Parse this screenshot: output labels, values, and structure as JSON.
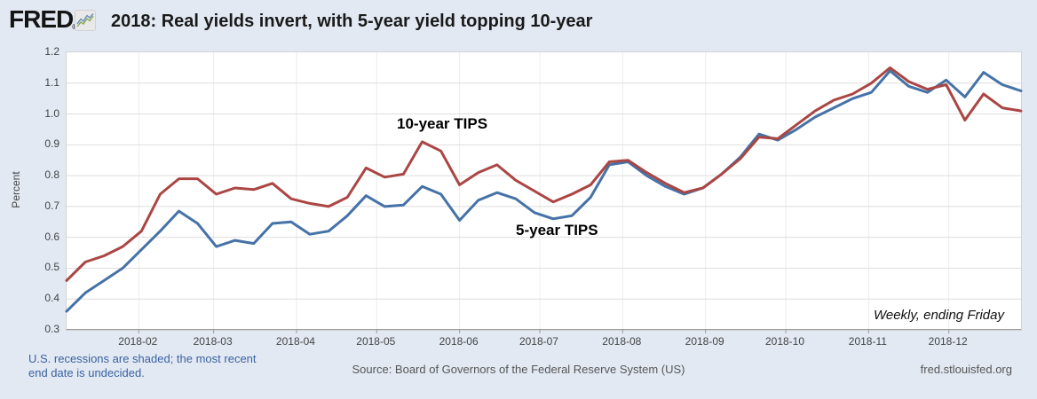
{
  "header": {
    "logo": "FRED",
    "registered": "®",
    "title": "2018: Real yields invert, with 5-year yield topping 10-year"
  },
  "chart_data": {
    "type": "line",
    "title": "2018: Real yields invert, with 5-year yield topping 10-year",
    "ylabel": "Percent",
    "ylim": [
      0.3,
      1.2
    ],
    "yticklabels": [
      "1.2",
      "1.1",
      "1.0",
      "0.9",
      "0.8",
      "0.7",
      "0.6",
      "0.5",
      "0.4",
      "0.3"
    ],
    "xticklabels": [
      "2018-02",
      "2018-03",
      "2018-04",
      "2018-05",
      "2018-06",
      "2018-07",
      "2018-08",
      "2018-09",
      "2018-10",
      "2018-11",
      "2018-12"
    ],
    "grid": true,
    "frequency_note": "Weekly, ending Friday",
    "annotations": [
      {
        "text": "10-year TIPS"
      },
      {
        "text": "5-year TIPS"
      }
    ],
    "x_dates": [
      "2018-01-05",
      "2018-01-12",
      "2018-01-19",
      "2018-01-26",
      "2018-02-02",
      "2018-02-09",
      "2018-02-16",
      "2018-02-23",
      "2018-03-02",
      "2018-03-09",
      "2018-03-16",
      "2018-03-23",
      "2018-03-30",
      "2018-04-06",
      "2018-04-13",
      "2018-04-20",
      "2018-04-27",
      "2018-05-04",
      "2018-05-11",
      "2018-05-18",
      "2018-05-25",
      "2018-06-01",
      "2018-06-08",
      "2018-06-15",
      "2018-06-22",
      "2018-06-29",
      "2018-07-06",
      "2018-07-13",
      "2018-07-20",
      "2018-07-27",
      "2018-08-03",
      "2018-08-10",
      "2018-08-17",
      "2018-08-24",
      "2018-08-31",
      "2018-09-07",
      "2018-09-14",
      "2018-09-21",
      "2018-09-28",
      "2018-10-05",
      "2018-10-12",
      "2018-10-19",
      "2018-10-26",
      "2018-11-02",
      "2018-11-09",
      "2018-11-16",
      "2018-11-23",
      "2018-11-30",
      "2018-12-07",
      "2018-12-14",
      "2018-12-21",
      "2018-12-28"
    ],
    "series": [
      {
        "name": "10-year TIPS",
        "color": "#aa4643",
        "values": [
          0.46,
          0.52,
          0.54,
          0.57,
          0.62,
          0.74,
          0.79,
          0.79,
          0.74,
          0.76,
          0.755,
          0.775,
          0.725,
          0.71,
          0.7,
          0.73,
          0.825,
          0.795,
          0.805,
          0.91,
          0.88,
          0.77,
          0.81,
          0.835,
          0.785,
          0.75,
          0.715,
          0.74,
          0.77,
          0.845,
          0.85,
          0.81,
          0.775,
          0.745,
          0.76,
          0.805,
          0.855,
          0.925,
          0.92,
          0.965,
          1.01,
          1.045,
          1.065,
          1.1,
          1.15,
          1.105,
          1.08,
          1.095,
          0.98,
          1.065,
          1.02,
          1.01
        ]
      },
      {
        "name": "5-year TIPS",
        "color": "#4572a7",
        "values": [
          0.36,
          0.42,
          0.46,
          0.5,
          0.56,
          0.62,
          0.685,
          0.645,
          0.57,
          0.59,
          0.58,
          0.645,
          0.65,
          0.61,
          0.62,
          0.67,
          0.735,
          0.7,
          0.705,
          0.765,
          0.74,
          0.655,
          0.72,
          0.745,
          0.725,
          0.68,
          0.66,
          0.67,
          0.73,
          0.835,
          0.845,
          0.8,
          0.765,
          0.74,
          0.76,
          0.805,
          0.86,
          0.935,
          0.915,
          0.95,
          0.99,
          1.02,
          1.05,
          1.07,
          1.14,
          1.09,
          1.07,
          1.11,
          1.055,
          1.135,
          1.095,
          1.075
        ]
      }
    ]
  },
  "footer": {
    "recession_note_line1": "U.S. recessions are shaded; the most recent",
    "recession_note_line2": "end date is undecided.",
    "source": "Source: Board of Governors of the Federal Reserve System (US)",
    "site": "fred.stlouisfed.org"
  }
}
